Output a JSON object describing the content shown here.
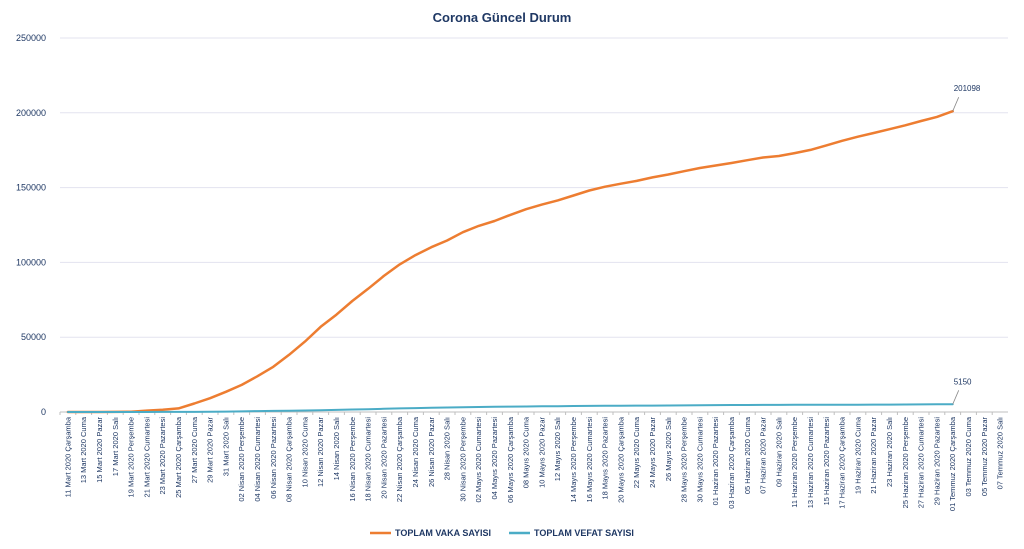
{
  "chart_data": {
    "type": "line",
    "title": "Corona Güncel Durum",
    "xlabel": "",
    "ylabel": "",
    "ylim": [
      0,
      250000
    ],
    "yticks": [
      "0",
      "50000",
      "100000",
      "150000",
      "200000",
      "250000"
    ],
    "grid": true,
    "legend": "bottom",
    "categories": [
      "11 Mart 2020 Çarşamba",
      "13 Mart 2020 Cuma",
      "15 Mart 2020 Pazar",
      "17 Mart 2020 Salı",
      "19 Mart 2020 Perşembe",
      "21 Mart 2020 Cumartesi",
      "23 Mart 2020 Pazartesi",
      "25 Mart 2020 Çarşamba",
      "27 Mart 2020 Cuma",
      "29 Mart 2020 Pazar",
      "31 Mart 2020 Salı",
      "02 Nisan 2020 Perşembe",
      "04 Nisan 2020 Cumartesi",
      "06 Nisan 2020 Pazartesi",
      "08 Nisan 2020 Çarşamba",
      "10 Nisan 2020 Cuma",
      "12 Nisan 2020 Pazar",
      "14 Nisan 2020 Salı",
      "16 Nisan 2020 Perşembe",
      "18 Nisan 2020 Cumartesi",
      "20 Nisan 2020 Pazartesi",
      "22 Nisan 2020 Çarşamba",
      "24 Nisan 2020 Cuma",
      "26 Nisan 2020 Pazar",
      "28 Nisan 2020 Salı",
      "30 Nisan 2020 Perşembe",
      "02 Mayıs 2020 Cumartesi",
      "04 Mayıs 2020 Pazartesi",
      "06 Mayıs 2020 Çarşamba",
      "08 Mayıs 2020 Cuma",
      "10 Mayıs 2020 Pazar",
      "12 Mayıs 2020 Salı",
      "14 Mayıs 2020 Perşembe",
      "16 Mayıs 2020 Cumartesi",
      "18 Mayıs 2020 Pazartesi",
      "20 Mayıs 2020 Çarşamba",
      "22 Mayıs 2020 Cuma",
      "24 Mayıs 2020 Pazar",
      "26 Mayıs 2020 Salı",
      "28 Mayıs 2020 Perşembe",
      "30 Mayıs 2020 Cumartesi",
      "01 Haziran 2020 Pazartesi",
      "03 Haziran 2020 Çarşamba",
      "05 Haziran 2020 Cuma",
      "07 Haziran 2020 Pazar",
      "09 Haziran 2020 Salı",
      "11 Haziran 2020 Perşembe",
      "13 Haziran 2020 Cumartesi",
      "15 Haziran 2020 Pazartesi",
      "17 Haziran 2020 Çarşamba",
      "19 Haziran 2020 Cuma",
      "21 Haziran 2020 Pazar",
      "23 Haziran 2020 Salı",
      "25 Haziran 2020 Perşembe",
      "27 Haziran 2020 Cumartesi",
      "29 Haziran 2020 Pazartesi",
      "01 Temmuz 2020 Çarşamba",
      "03 Temmuz 2020 Cuma",
      "05 Temmuz 2020 Pazar",
      "07 Temmuz 2020 Salı"
    ],
    "series": [
      {
        "name": "TOPLAM VAKA SAYISI",
        "color": "#ed7d31",
        "values": [
          1,
          5,
          18,
          47,
          191,
          947,
          1529,
          2433,
          5698,
          9217,
          13531,
          18135,
          23934,
          30217,
          38226,
          47029,
          56956,
          65111,
          74193,
          82329,
          90980,
          98674,
          104912,
          110130,
          114653,
          120204,
          124375,
          127659,
          131744,
          135569,
          138657,
          141475,
          144749,
          148067,
          150593,
          152587,
          154500,
          156827,
          158762,
          160979,
          163103,
          164769,
          166422,
          168340,
          170132,
          171121,
          173036,
          175218,
          178239,
          181298,
          184031,
          186493,
          189061,
          191657,
          194511,
          197239,
          201098,
          null,
          null,
          null
        ],
        "end_label": "201098"
      },
      {
        "name": "TOPLAM VEFAT SAYISI",
        "color": "#4bacc6",
        "values": [
          0,
          0,
          0,
          1,
          3,
          21,
          37,
          59,
          92,
          131,
          277,
          425,
          574,
          725,
          859,
          1006,
          1198,
          1403,
          1643,
          1890,
          2140,
          2376,
          2600,
          2805,
          2992,
          3174,
          3336,
          3461,
          3584,
          3689,
          3786,
          3894,
          4007,
          4096,
          4171,
          4222,
          4276,
          4308,
          4369,
          4431,
          4515,
          4585,
          4648,
          4692,
          4729,
          4763,
          4807,
          4842,
          4861,
          4882,
          4905,
          4935,
          4974,
          5025,
          5065,
          5115,
          5150,
          null,
          null,
          null
        ],
        "end_label": "5150"
      }
    ]
  }
}
